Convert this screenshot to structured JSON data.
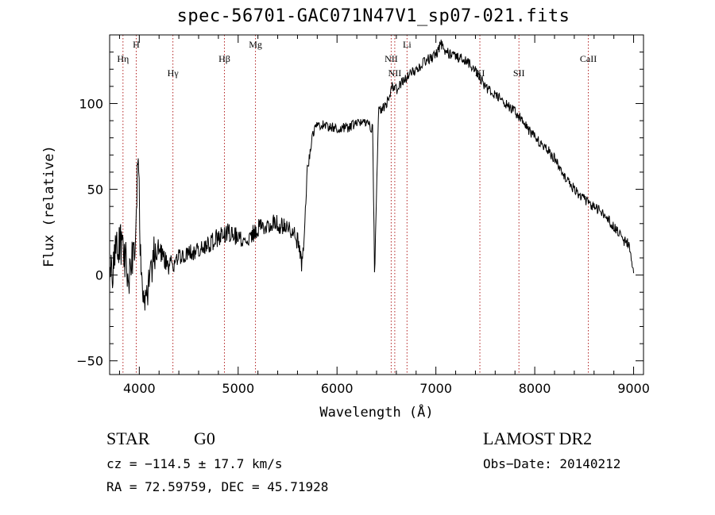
{
  "chart_data": {
    "type": "line",
    "title": "spec-56701-GAC071N47V1_sp07-021.fits",
    "xlabel": "Wavelength (Å)",
    "ylabel": "Flux (relative)",
    "xlim": [
      3700,
      9100
    ],
    "ylim": [
      -58,
      140
    ],
    "xticks": [
      4000,
      5000,
      6000,
      7000,
      8000,
      9000
    ],
    "yticks": [
      -50,
      0,
      50,
      100
    ],
    "line_color": "#000000",
    "marker_color": "#b22222",
    "lines": [
      {
        "name": "Hη",
        "x": 3835,
        "row": 1
      },
      {
        "name": "H",
        "x": 3969,
        "row": 0
      },
      {
        "name": "Hγ",
        "x": 4340,
        "row": 2
      },
      {
        "name": "Hβ",
        "x": 4861,
        "row": 1
      },
      {
        "name": "Mg",
        "x": 5175,
        "row": 0
      },
      {
        "name": "NII",
        "x": 6548,
        "row": 1
      },
      {
        "name": "NII",
        "x": 6584,
        "row": 2
      },
      {
        "name": "Li",
        "x": 6708,
        "row": 0
      },
      {
        "name": "KI",
        "x": 7445,
        "row": 2
      },
      {
        "name": "SII",
        "x": 7840,
        "row": 2
      },
      {
        "name": "CaII",
        "x": 8542,
        "row": 1
      }
    ],
    "series": [
      {
        "x": [
          3700,
          3750,
          3800,
          3850,
          3900,
          3950,
          3990,
          4010,
          4050,
          4100,
          4150,
          4200,
          4300,
          4400,
          4500,
          4600,
          4700,
          4800,
          4900,
          5000,
          5100,
          5200,
          5300,
          5400,
          5500,
          5550,
          5600,
          5650,
          5680,
          5700,
          5750,
          5800,
          5900,
          6000,
          6100,
          6200,
          6300,
          6360,
          6380,
          6420,
          6500,
          6560,
          6600,
          6700,
          6800,
          6900,
          7000,
          7050,
          7100,
          7200,
          7300,
          7400,
          7500,
          7600,
          7700,
          7800,
          7900,
          8000,
          8100,
          8200,
          8300,
          8400,
          8500,
          8600,
          8700,
          8800,
          8900,
          8950,
          9000
        ],
        "y": [
          -5,
          10,
          20,
          10,
          0,
          15,
          75,
          10,
          -20,
          0,
          10,
          15,
          5,
          10,
          12,
          15,
          18,
          22,
          25,
          22,
          20,
          28,
          30,
          30,
          28,
          25,
          20,
          5,
          35,
          60,
          82,
          88,
          87,
          85,
          86,
          88,
          90,
          85,
          0,
          95,
          100,
          110,
          108,
          115,
          120,
          125,
          128,
          135,
          130,
          128,
          125,
          120,
          110,
          105,
          100,
          95,
          88,
          80,
          75,
          68,
          58,
          50,
          44,
          40,
          35,
          28,
          20,
          18,
          0
        ]
      }
    ]
  },
  "footer": {
    "class_type": "STAR",
    "subclass": "G0",
    "survey": "LAMOST DR2",
    "cz": "cz = −114.5 ± 17.7 km/s",
    "obs_date": "Obs−Date: 20140212",
    "radec": "RA =  72.59759, DEC =  45.71928"
  }
}
